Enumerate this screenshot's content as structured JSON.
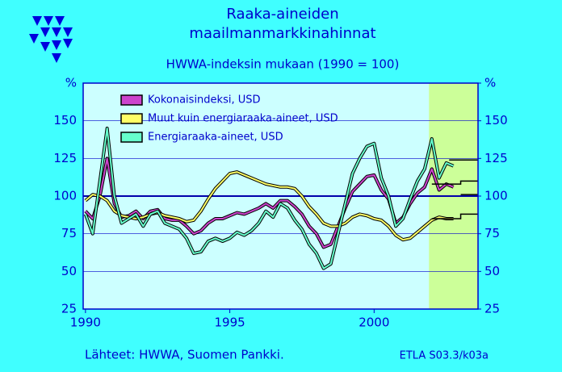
{
  "chart_data": {
    "type": "line",
    "title": [
      "Raaka-aineiden",
      "maailmanmarkkinahinnat"
    ],
    "subtitle": "HWWA-indeksin  mukaan  (1990 = 100)",
    "source": "Lähteet:  HWWA, Suomen Pankki.",
    "code": "ETLA S03.3/k03a",
    "x": [
      1990,
      1990.25,
      1990.5,
      1990.75,
      1991,
      1991.25,
      1991.5,
      1991.75,
      1992,
      1992.25,
      1992.5,
      1992.75,
      1993,
      1993.25,
      1993.5,
      1993.75,
      1994,
      1994.25,
      1994.5,
      1994.75,
      1995,
      1995.25,
      1995.5,
      1995.75,
      1996,
      1996.25,
      1996.5,
      1996.75,
      1997,
      1997.25,
      1997.5,
      1997.75,
      1998,
      1998.25,
      1998.5,
      1998.75,
      1999,
      1999.25,
      1999.5,
      1999.75,
      2000,
      2000.25,
      2000.5,
      2000.75,
      2001,
      2001.25,
      2001.5,
      2001.75,
      2002,
      2002.25,
      2002.5,
      2002.75
    ],
    "series": [
      {
        "name": "Kokonaisindeksi, USD",
        "color": "#cc44cc",
        "values": [
          90,
          85,
          100,
          125,
          95,
          86,
          87,
          90,
          85,
          90,
          91,
          85,
          84,
          84,
          80,
          75,
          77,
          82,
          85,
          85,
          87,
          89,
          88,
          90,
          92,
          95,
          92,
          97,
          97,
          93,
          88,
          80,
          75,
          66,
          68,
          80,
          92,
          103,
          108,
          113,
          114,
          104,
          98,
          82,
          86,
          95,
          102,
          106,
          118,
          104,
          108,
          106
        ]
      },
      {
        "name": "Muut kuin energiaraaka-aineet, USD",
        "color": "#ffff66",
        "values": [
          97,
          101,
          100,
          97,
          90,
          87,
          86,
          85,
          86,
          88,
          89,
          87,
          86,
          85,
          83,
          84,
          90,
          98,
          105,
          110,
          115,
          116,
          114,
          112,
          110,
          108,
          107,
          106,
          106,
          105,
          100,
          93,
          88,
          82,
          80,
          80,
          82,
          86,
          88,
          87,
          85,
          84,
          80,
          74,
          71,
          72,
          76,
          80,
          84,
          86,
          85,
          85
        ]
      },
      {
        "name": "Energiaraaka-aineet, USD",
        "color": "#66ffcc",
        "values": [
          88,
          75,
          110,
          145,
          100,
          82,
          85,
          88,
          80,
          88,
          90,
          82,
          80,
          78,
          72,
          62,
          63,
          70,
          72,
          70,
          72,
          76,
          74,
          77,
          82,
          90,
          86,
          95,
          92,
          84,
          78,
          68,
          62,
          52,
          55,
          75,
          95,
          115,
          125,
          133,
          135,
          112,
          100,
          80,
          85,
          98,
          110,
          118,
          138,
          112,
          122,
          120
        ]
      }
    ],
    "forecasts": [
      {
        "x": [
          2002.6,
          2003.6
        ],
        "values": [
          124,
          124
        ]
      },
      {
        "x": [
          2002,
          2003,
          2003,
          2003.6
        ],
        "values": [
          108,
          108,
          110,
          110
        ]
      },
      {
        "x": [
          2003,
          2003.6
        ],
        "values": [
          101,
          101
        ]
      },
      {
        "x": [
          2002,
          2003,
          2003,
          2003.6
        ],
        "values": [
          85,
          85,
          88,
          88
        ]
      }
    ],
    "shaded_region": [
      2001.9,
      2003.6
    ],
    "reference_line": 100,
    "xlim": [
      1989.92,
      2003.6
    ],
    "xticks": [
      1990,
      1995,
      2000
    ],
    "ylim": [
      25,
      175
    ],
    "yticks": [
      25,
      50,
      75,
      100,
      125,
      150,
      {
        "value": 175,
        "label": "%"
      }
    ],
    "y2lim": [
      25,
      175
    ],
    "y2ticks": [
      25,
      50,
      75,
      100,
      125,
      150,
      {
        "value": 175,
        "label": "%"
      }
    ],
    "grid": true,
    "legend": "upper left"
  }
}
